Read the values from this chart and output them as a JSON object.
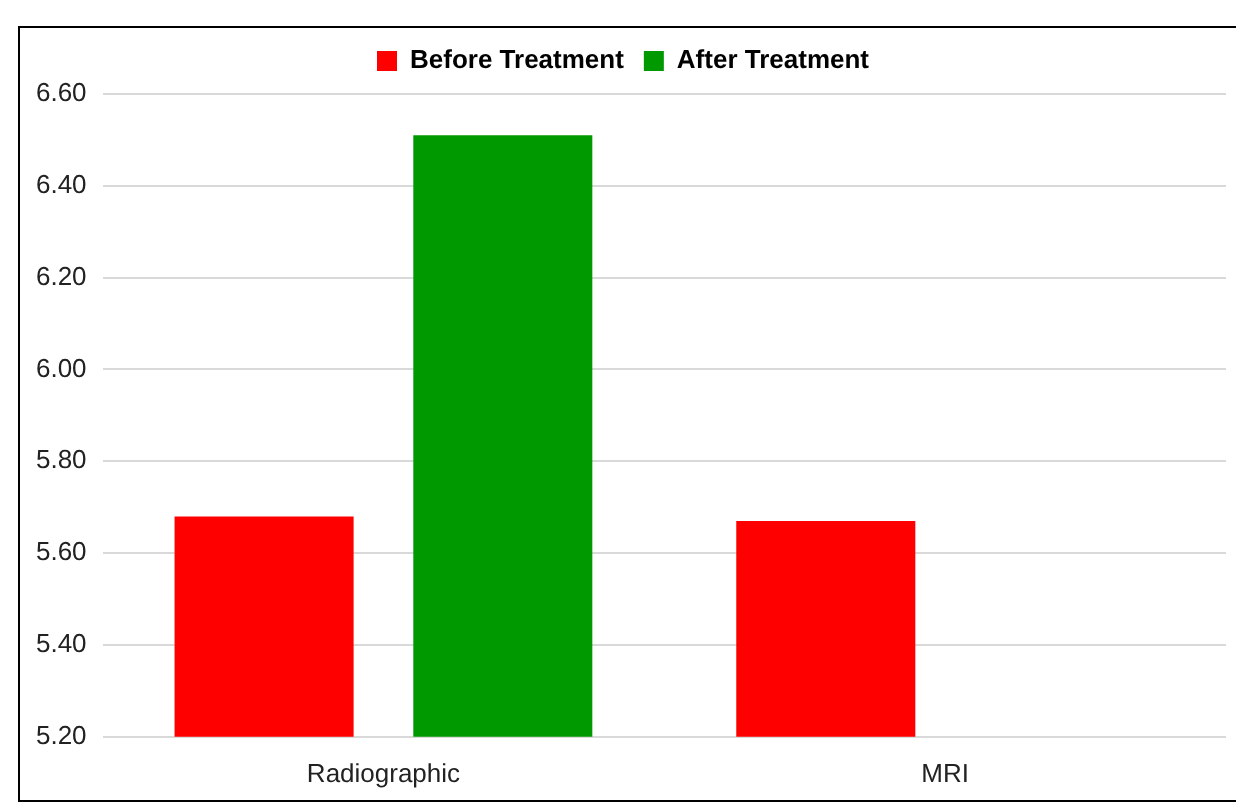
{
  "chart_data": {
    "type": "bar",
    "categories": [
      "Radiographic",
      "MRI"
    ],
    "series": [
      {
        "name": "Before Treatment",
        "color": "#ff0000",
        "values": [
          5.68,
          5.67
        ]
      },
      {
        "name": "After Treatment",
        "color": "#009900",
        "values": [
          6.51,
          null
        ]
      }
    ],
    "ylim": [
      5.2,
      6.6
    ],
    "yticks": [
      {
        "value": 5.2,
        "label": "5.20"
      },
      {
        "value": 5.4,
        "label": "5.40"
      },
      {
        "value": 5.6,
        "label": "5.60"
      },
      {
        "value": 5.8,
        "label": "5.80"
      },
      {
        "value": 6.0,
        "label": "6.00"
      },
      {
        "value": 6.2,
        "label": "6.20"
      },
      {
        "value": 6.4,
        "label": "6.40"
      },
      {
        "value": 6.6,
        "label": "6.60"
      }
    ],
    "grid": "y",
    "legend": "top"
  }
}
